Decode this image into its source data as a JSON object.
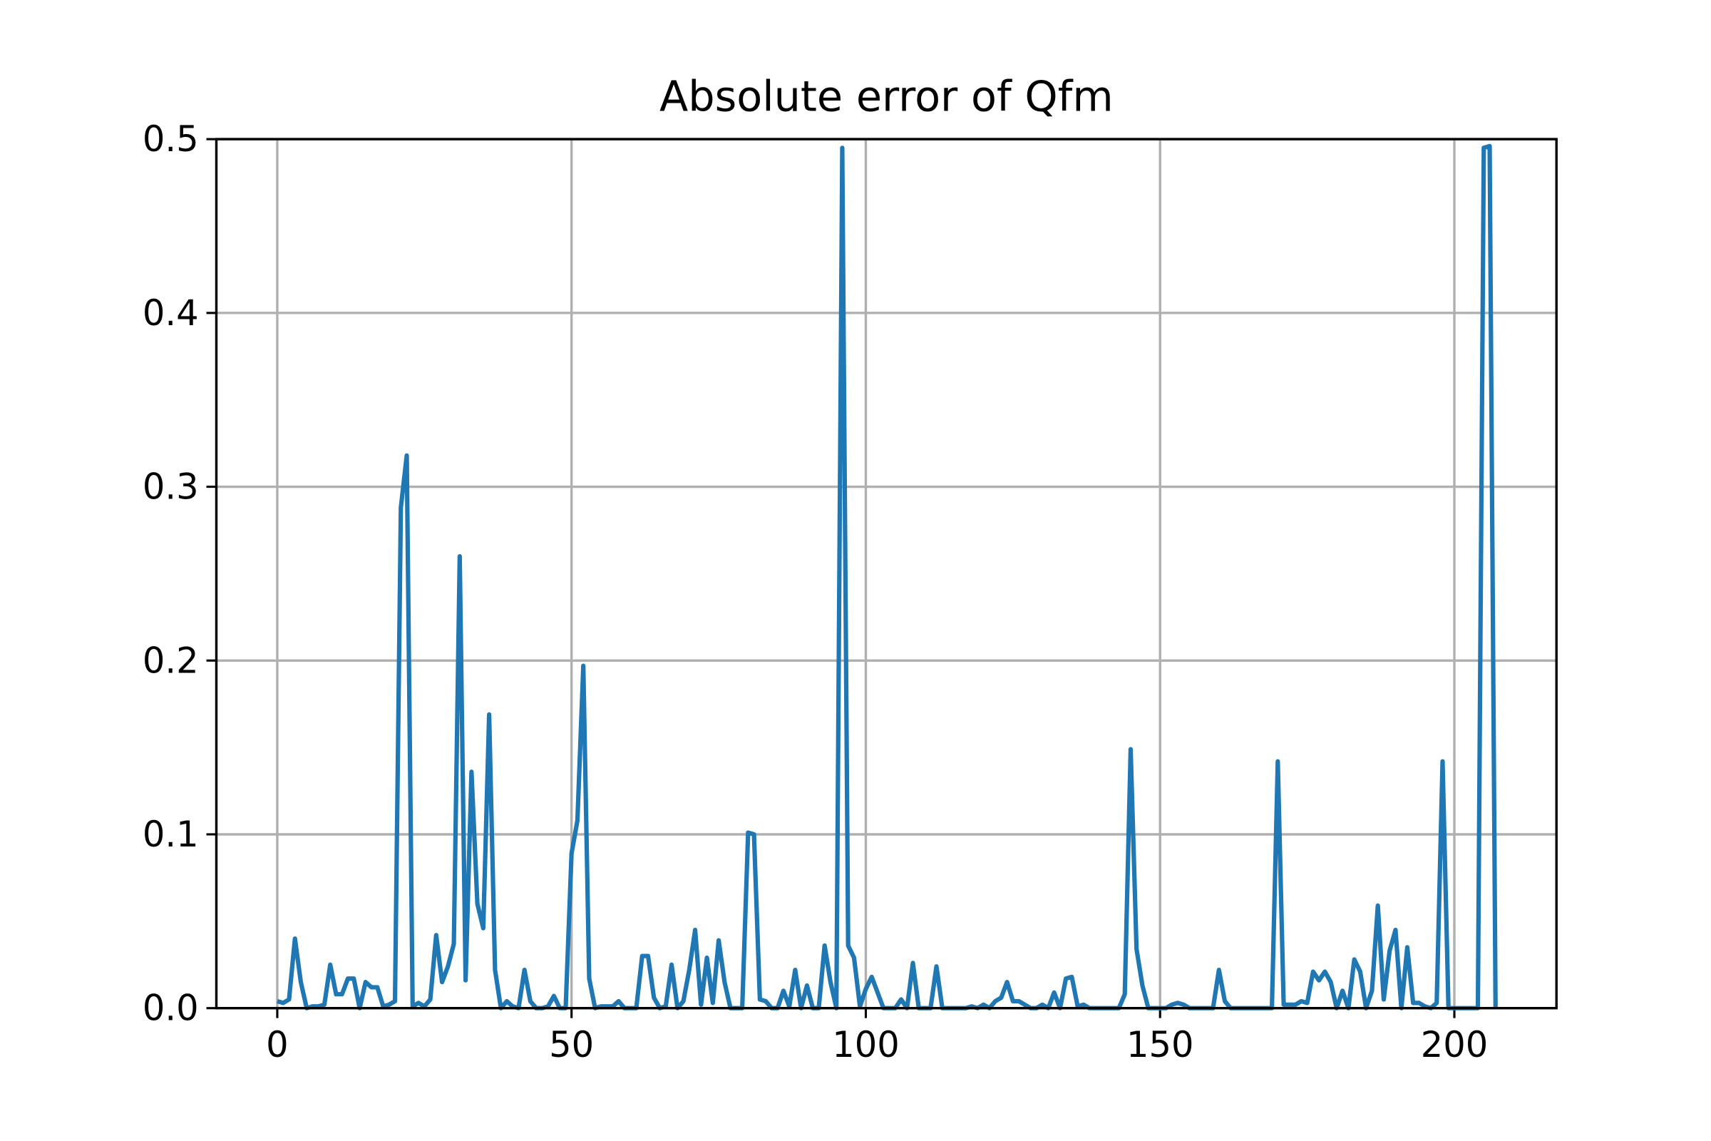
{
  "chart_data": {
    "type": "line",
    "title": "Absolute error of Qfm",
    "x": [
      0,
      1,
      2,
      3,
      4,
      5,
      6,
      7,
      8,
      9,
      10,
      11,
      12,
      13,
      14,
      15,
      16,
      17,
      18,
      19,
      20,
      21,
      22,
      23,
      24,
      25,
      26,
      27,
      28,
      29,
      30,
      31,
      32,
      33,
      34,
      35,
      36,
      37,
      38,
      39,
      40,
      41,
      42,
      43,
      44,
      45,
      46,
      47,
      48,
      49,
      50,
      51,
      52,
      53,
      54,
      55,
      56,
      57,
      58,
      59,
      60,
      61,
      62,
      63,
      64,
      65,
      66,
      67,
      68,
      69,
      70,
      71,
      72,
      73,
      74,
      75,
      76,
      77,
      78,
      79,
      80,
      81,
      82,
      83,
      84,
      85,
      86,
      87,
      88,
      89,
      90,
      91,
      92,
      93,
      94,
      95,
      96,
      97,
      98,
      99,
      100,
      101,
      102,
      103,
      104,
      105,
      106,
      107,
      108,
      109,
      110,
      111,
      112,
      113,
      114,
      115,
      116,
      117,
      118,
      119,
      120,
      121,
      122,
      123,
      124,
      125,
      126,
      127,
      128,
      129,
      130,
      131,
      132,
      133,
      134,
      135,
      136,
      137,
      138,
      139,
      140,
      141,
      142,
      143,
      144,
      145,
      146,
      147,
      148,
      149,
      150,
      151,
      152,
      153,
      154,
      155,
      156,
      157,
      158,
      159,
      160,
      161,
      162,
      163,
      164,
      165,
      166,
      167,
      168,
      169,
      170,
      171,
      172,
      173,
      174,
      175,
      176,
      177,
      178,
      179,
      180,
      181,
      182,
      183,
      184,
      185,
      186,
      187,
      188,
      189,
      190,
      191,
      192,
      193,
      194,
      195,
      196,
      197,
      198,
      199,
      200,
      201,
      202,
      203,
      204,
      205,
      206,
      207
    ],
    "values": [
      0.004,
      0.003,
      0.005,
      0.04,
      0.015,
      0.0,
      0.001,
      0.001,
      0.002,
      0.025,
      0.008,
      0.008,
      0.017,
      0.017,
      0.0,
      0.015,
      0.012,
      0.012,
      0.001,
      0.002,
      0.004,
      0.288,
      0.318,
      0.001,
      0.003,
      0.001,
      0.005,
      0.042,
      0.015,
      0.024,
      0.037,
      0.26,
      0.016,
      0.136,
      0.06,
      0.046,
      0.169,
      0.022,
      0.0,
      0.004,
      0.001,
      0.0,
      0.022,
      0.004,
      0.0,
      0.0,
      0.001,
      0.007,
      0.0,
      0.0,
      0.089,
      0.108,
      0.197,
      0.017,
      0.0,
      0.001,
      0.001,
      0.001,
      0.004,
      0.0,
      0.0,
      0.0,
      0.03,
      0.03,
      0.006,
      0.0,
      0.001,
      0.025,
      0.0,
      0.004,
      0.022,
      0.045,
      0.002,
      0.029,
      0.003,
      0.039,
      0.015,
      0.0,
      0.0,
      0.0,
      0.101,
      0.1,
      0.005,
      0.004,
      0.0,
      0.0,
      0.01,
      0.001,
      0.022,
      0.0,
      0.013,
      0.0,
      0.0,
      0.036,
      0.015,
      0.0,
      0.495,
      0.036,
      0.029,
      0.001,
      0.011,
      0.018,
      0.009,
      0.0,
      0.0,
      0.0,
      0.005,
      0.0,
      0.026,
      0.0,
      0.0,
      0.0,
      0.024,
      0.0,
      0.0,
      0.0,
      0.0,
      0.0,
      0.001,
      0.0,
      0.002,
      0.0,
      0.004,
      0.006,
      0.015,
      0.004,
      0.004,
      0.002,
      0.0,
      0.0,
      0.002,
      0.0,
      0.009,
      0.0,
      0.017,
      0.018,
      0.001,
      0.002,
      0.0,
      0.0,
      0.0,
      0.0,
      0.0,
      0.0,
      0.008,
      0.149,
      0.034,
      0.013,
      0.0,
      0.0,
      0.0,
      0.0,
      0.002,
      0.003,
      0.002,
      0.0,
      0.0,
      0.0,
      0.0,
      0.0,
      0.022,
      0.004,
      0.0,
      0.0,
      0.0,
      0.0,
      0.0,
      0.0,
      0.0,
      0.0,
      0.142,
      0.002,
      0.002,
      0.002,
      0.004,
      0.003,
      0.021,
      0.016,
      0.021,
      0.015,
      0.0,
      0.01,
      0.0,
      0.028,
      0.021,
      0.0,
      0.01,
      0.059,
      0.005,
      0.033,
      0.045,
      0.0,
      0.035,
      0.003,
      0.003,
      0.001,
      0.0,
      0.003,
      0.142,
      0.0,
      0.0,
      0.0,
      0.0,
      0.0,
      0.0,
      0.495,
      0.496,
      0.0
    ],
    "color": "#1f77b4",
    "xlim": [
      -10.35,
      217.35
    ],
    "xticks": [
      0,
      50,
      100,
      150,
      200
    ],
    "ylim": [
      0,
      0.5
    ],
    "yticks": [
      {
        "value": 0,
        "label": "0.0"
      },
      0.1,
      0.2,
      0.3,
      0.4,
      0.5
    ],
    "grid": true
  }
}
